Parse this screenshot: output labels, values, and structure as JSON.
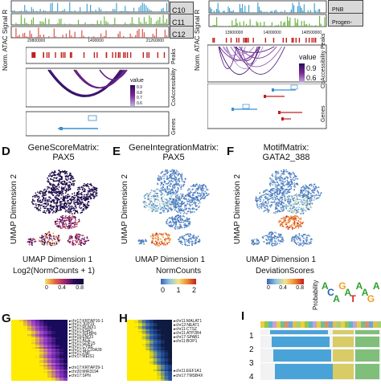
{
  "panel_letters": {
    "d": "D",
    "e": "E",
    "f": "F",
    "g": "G",
    "h": "H",
    "i": "I"
  },
  "top_left": {
    "ylabel_signal": "Norm. ATAC Signal R",
    "tracks": [
      "C10",
      "C11",
      "C12"
    ],
    "xticks": [
      "20800000",
      "1490000",
      "21260000"
    ],
    "ylabel_peaks": "Peaks",
    "ylabel_coaccess": "CoAccessibility",
    "ylabel_genes": "Genes",
    "legend_title": "value",
    "legend_values": [
      "0.9",
      "0.8",
      "0.7",
      "0.6"
    ]
  },
  "top_right": {
    "ylabel_signal": "Norm. ATAC Signal R",
    "tracks": [
      "PNB",
      "Progen-"
    ],
    "xticks": [
      "13900000",
      "14000000",
      "140500000"
    ],
    "ylabel_peaks": "CoAccessibility Peaks",
    "ylabel_genes": "Genes",
    "legend_title": "value",
    "legend_values": [
      "0.9",
      "0.6"
    ]
  },
  "umap": {
    "xlabel": "UMAP Dimension 1",
    "ylabel": "UMAP Dimension 2",
    "panels": [
      {
        "title_line1": "GeneScoreMatrix:",
        "title_line2": "PAX5",
        "legend_label": "Log2(NormCounts + 1)",
        "legend_ticks": [
          "0",
          "0.4",
          "0.8"
        ],
        "colors": [
          "#f5e663",
          "#e5683c",
          "#a4266f",
          "#2a0b5f",
          "#110833"
        ]
      },
      {
        "title_line1": "GeneIntegrationMatrix:",
        "title_line2": "PAX5",
        "legend_label": "NormCounts",
        "legend_ticks": [
          "0",
          "1",
          "2"
        ],
        "colors": [
          "#3a63b5",
          "#8fc6df",
          "#f3e58b",
          "#f0892f",
          "#c21e1e"
        ]
      },
      {
        "title_line1": "MotifMatrix:",
        "title_line2": "GATA2_388",
        "legend_label": "DeviationScores",
        "legend_ticks": [
          "0",
          "0.4",
          "0.8"
        ],
        "colors": [
          "#3a63b5",
          "#8fc6df",
          "#f3e58b",
          "#f0892f",
          "#c21e1e"
        ]
      }
    ]
  },
  "motif_logo": {
    "ylabel": "Probability",
    "letters": "ACAGATAAGA"
  },
  "heatmap_g": {
    "labels": [
      "chr17:KRTAP16-1",
      "chr17:JUP19",
      "chr17:RUNX1",
      "chr17:ESR1",
      "chr17:IGFBP6",
      "chr19:ENO3",
      "chr17:ACE",
      "chr17:GDF15",
      "chr17:CYB5",
      "chr17:SLC20A39",
      "chr17:ZNF",
      "chr17:MEIS1",
      "chr17:KRTAP29-1",
      "chr20:MIR3194",
      "chr17:SPN"
    ],
    "colors": [
      "#ffec00",
      "#9b3bd0",
      "#1a0a5c"
    ]
  },
  "heatmap_h": {
    "labels": [
      "chr11:MALAT1",
      "chr12:NEAT1",
      "chr11:CTSZ",
      "chr11:ATP2B4",
      "chr17:SPAB1",
      "chr11:BOP1",
      "chr11:EEF1A1",
      "chr17:TMSB4X"
    ],
    "colors": [
      "#ffec00",
      "#2b5fb2",
      "#0e1a40"
    ]
  },
  "panel_i": {
    "row_labels": [
      "1",
      "2",
      "3",
      "4"
    ]
  },
  "chart_data": [
    {
      "type": "scatter",
      "title": "GeneScoreMatrix: PAX5",
      "xlabel": "UMAP Dimension 1",
      "ylabel": "UMAP Dimension 2",
      "colorbar_label": "Log2(NormCounts + 1)",
      "colorbar_range": [
        0,
        0.8
      ]
    },
    {
      "type": "scatter",
      "title": "GeneIntegrationMatrix: PAX5",
      "xlabel": "UMAP Dimension 1",
      "ylabel": "UMAP Dimension 2",
      "colorbar_label": "NormCounts",
      "colorbar_range": [
        0,
        2
      ]
    },
    {
      "type": "scatter",
      "title": "MotifMatrix: GATA2_388",
      "xlabel": "UMAP Dimension 1",
      "ylabel": "UMAP Dimension 2",
      "colorbar_label": "DeviationScores",
      "colorbar_range": [
        0,
        0.8
      ]
    },
    {
      "type": "heatmap",
      "row_labels": [
        "chr17:KRTAP16-1",
        "chr17:JUP19",
        "chr17:RUNX1",
        "chr17:ESR1",
        "chr17:IGFBP6",
        "chr19:ENO3",
        "chr17:ACE",
        "chr17:GDF15",
        "chr17:CYB5",
        "chr17:SLC20A39",
        "chr17:ZNF",
        "chr17:MEIS1",
        "chr17:KRTAP29-1",
        "chr20:MIR3194",
        "chr17:SPN"
      ]
    },
    {
      "type": "heatmap",
      "row_labels": [
        "chr11:MALAT1",
        "chr12:NEAT1",
        "chr11:CTSZ",
        "chr11:ATP2B4",
        "chr17:SPAB1",
        "chr11:BOP1",
        "chr11:EEF1A1",
        "chr17:TMSB4X"
      ]
    }
  ]
}
